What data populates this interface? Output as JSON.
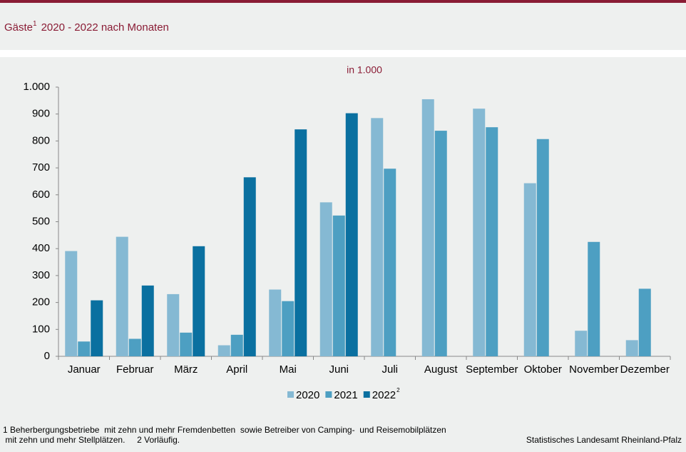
{
  "chart_data": {
    "type": "bar",
    "title": "Gäste",
    "title_superscript": "1",
    "title_rest": "2020 - 2022 nach Monaten",
    "subtitle": "in 1.000",
    "categories": [
      "Januar",
      "Februar",
      "März",
      "April",
      "Mai",
      "Juni",
      "Juli",
      "August",
      "September",
      "Oktober",
      "November",
      "Dezember"
    ],
    "series": [
      {
        "name": "2020",
        "color": "#85b9d3",
        "values": [
          391,
          444,
          231,
          41,
          248,
          572,
          885,
          955,
          920,
          643,
          95,
          60
        ]
      },
      {
        "name": "2021",
        "color": "#4d9fc2",
        "values": [
          55,
          65,
          88,
          80,
          205,
          523,
          697,
          838,
          851,
          807,
          425,
          251
        ]
      },
      {
        "name": "2022",
        "superscript": "2",
        "color": "#0a70a0",
        "values": [
          208,
          263,
          409,
          665,
          843,
          903,
          null,
          null,
          null,
          null,
          null,
          null
        ]
      }
    ],
    "ylim": [
      0,
      1000
    ],
    "yticks": [
      0,
      100,
      200,
      300,
      400,
      500,
      600,
      700,
      800,
      900,
      {
        "value": 1000,
        "label": "1.000"
      }
    ],
    "footnote_1": "1 Beherbergungsbetriebe  mit zehn und mehr Fremdenbetten  sowie Betreiber von Camping-  und Reisemobilplätzen",
    "footnote_2": " mit zehn und mehr Stellplätzen.     2 Vorläufig.",
    "source": "Statistisches Landesamt Rheinland-Pfalz"
  }
}
